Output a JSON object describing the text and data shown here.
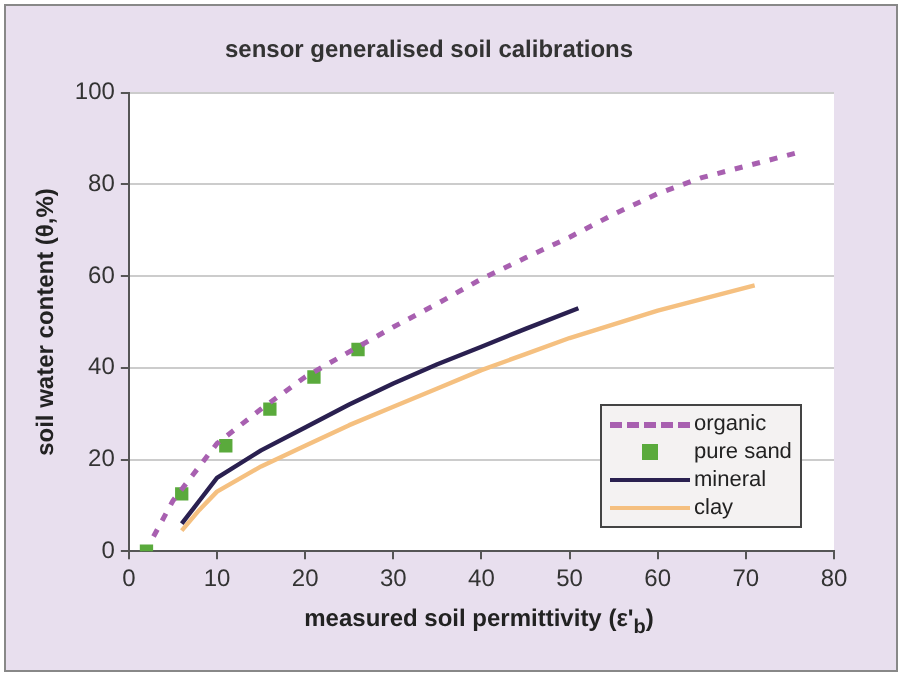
{
  "chart_data": {
    "type": "line",
    "title": "sensor generalised soil calibrations",
    "xlabel": "measured soil permittivity (ε'$_{b}$)",
    "ylabel": "soil water content (θ,%)",
    "xlim": [
      0,
      80
    ],
    "xticks": [
      0,
      10,
      20,
      30,
      40,
      50,
      60,
      70,
      80
    ],
    "ylim": [
      0,
      100
    ],
    "yticks": [
      0,
      20,
      40,
      60,
      80,
      100
    ],
    "grid": "y",
    "legend": "bottom right",
    "series": [
      {
        "name": "organic",
        "type": "line",
        "line_style": "dashed",
        "color": "#a860b0",
        "x": [
          2.8,
          5,
          10,
          15,
          20,
          25,
          30,
          35,
          40,
          45,
          50,
          55,
          60,
          65,
          70,
          76
        ],
        "values": [
          3.2,
          11,
          23.5,
          31,
          38,
          43.5,
          48.9,
          54,
          59.4,
          64,
          68.5,
          73.5,
          78,
          81.5,
          84,
          87
        ]
      },
      {
        "name": "pure sand",
        "type": "scatter",
        "marker": "square",
        "color": "#5aaa3c",
        "x": [
          2,
          6,
          11,
          16,
          21,
          26
        ],
        "values": [
          0,
          12.5,
          23,
          31,
          38,
          44
        ]
      },
      {
        "name": "mineral",
        "type": "line",
        "line_style": "solid",
        "color": "#2a2050",
        "x": [
          6,
          8,
          10,
          15,
          20,
          25,
          30,
          35,
          40,
          45,
          51
        ],
        "values": [
          6,
          11,
          16,
          22,
          27,
          32,
          36.6,
          40.8,
          44.6,
          48.5,
          53
        ]
      },
      {
        "name": "clay",
        "type": "line",
        "line_style": "solid",
        "color": "#f5c080",
        "x": [
          6,
          8,
          10,
          15,
          20,
          25,
          30,
          35,
          40,
          45,
          50,
          55,
          60,
          65,
          71
        ],
        "values": [
          4.5,
          9,
          13,
          18.5,
          23,
          27.5,
          31.5,
          35.5,
          39.5,
          43,
          46.5,
          49.5,
          52.5,
          55,
          58
        ]
      }
    ]
  }
}
